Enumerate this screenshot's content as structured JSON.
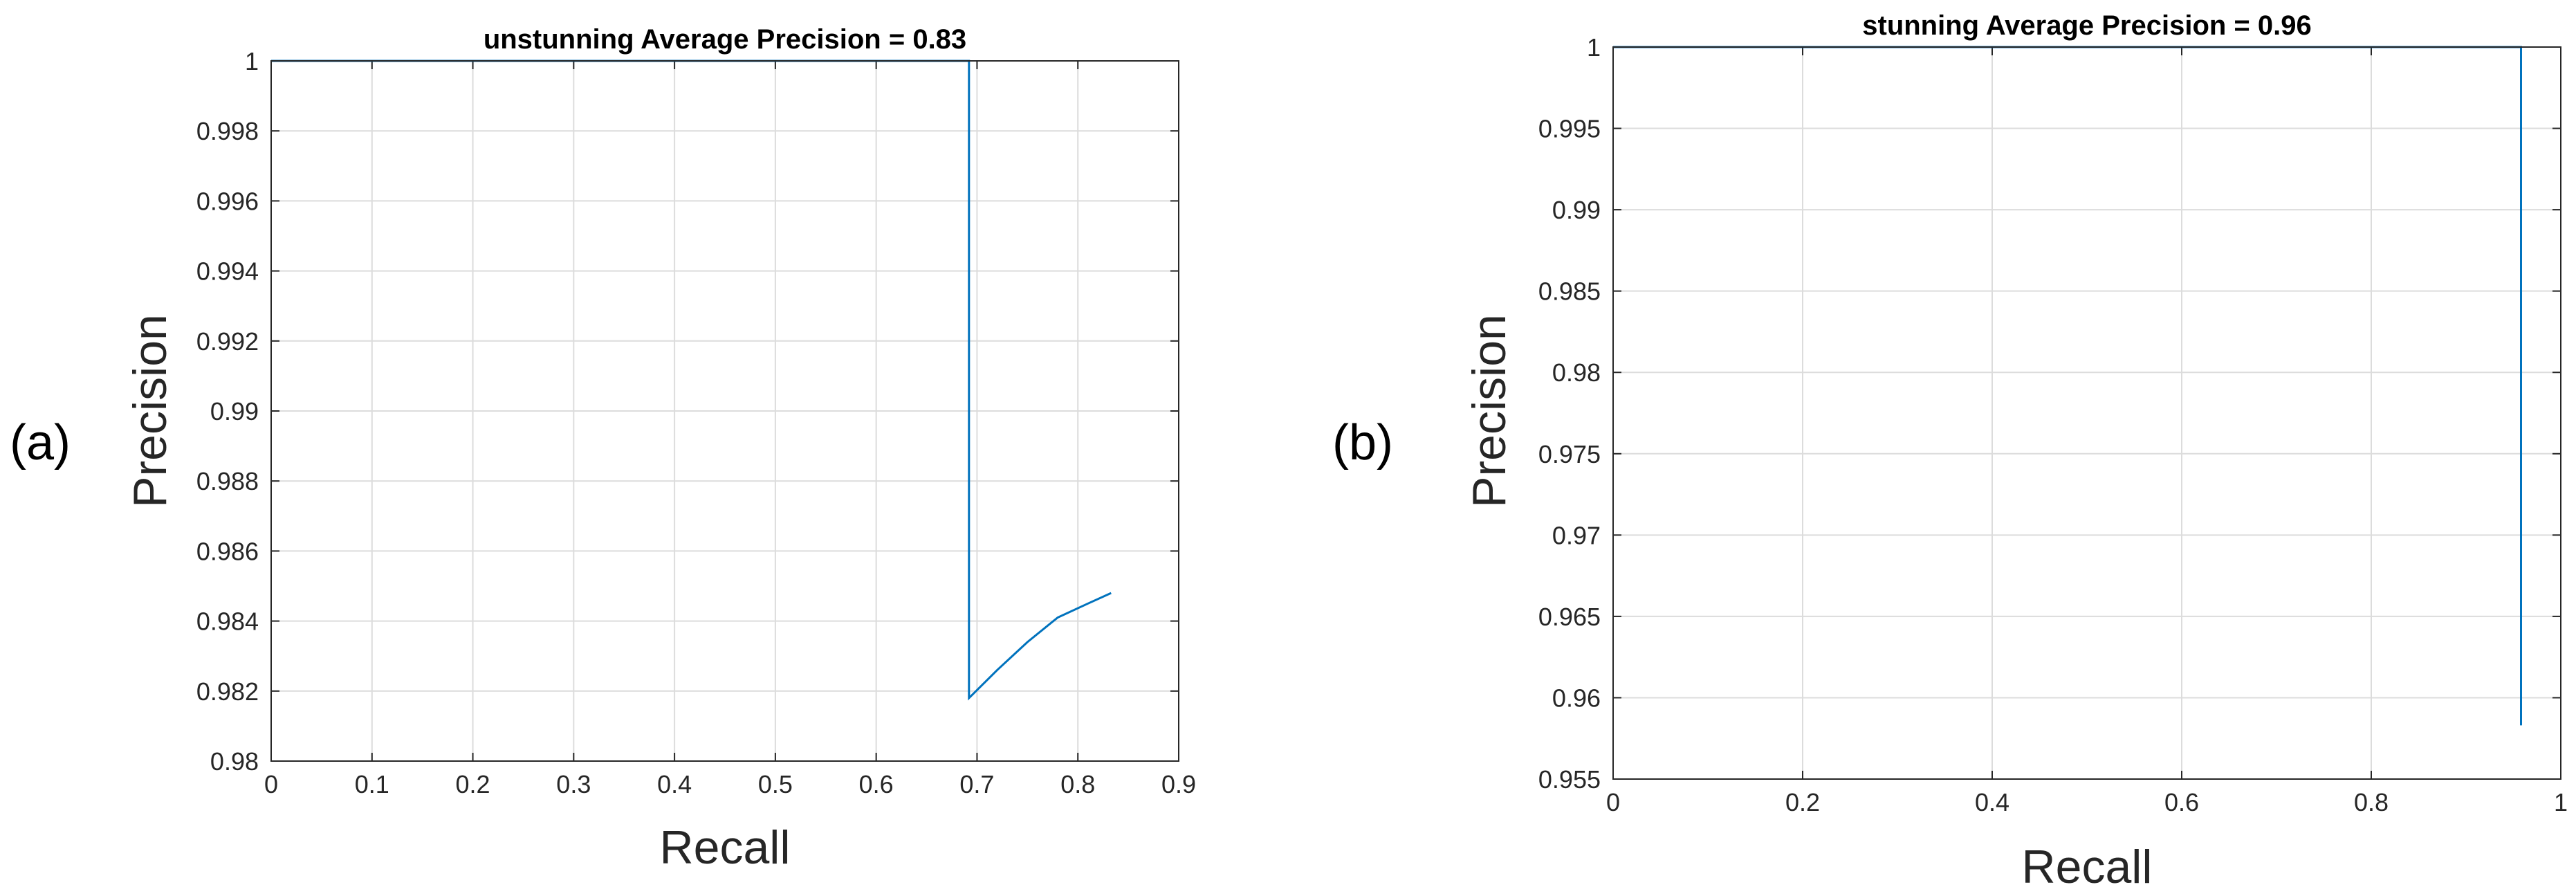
{
  "chart_data": [
    {
      "panel_label": "(a)",
      "type": "line",
      "title": "unstunning Average Precision = 0.83",
      "xlabel": "Recall",
      "ylabel": "Precision",
      "xlim": [
        0,
        0.9
      ],
      "ylim": [
        0.98,
        1
      ],
      "xticks": [
        "0",
        "0.1",
        "0.2",
        "0.3",
        "0.4",
        "0.5",
        "0.6",
        "0.7",
        "0.8",
        "0.9"
      ],
      "yticks": [
        "0.98",
        "0.982",
        "0.984",
        "0.986",
        "0.988",
        "0.99",
        "0.992",
        "0.994",
        "0.996",
        "0.998",
        "1"
      ],
      "grid": true,
      "color": "#0072BD",
      "series": [
        {
          "x": [
            0,
            0.692,
            0.692,
            0.72,
            0.75,
            0.78,
            0.81,
            0.833
          ],
          "y": [
            1,
            1,
            0.9818,
            0.9826,
            0.9834,
            0.9841,
            0.9845,
            0.9848
          ]
        }
      ]
    },
    {
      "panel_label": "(b)",
      "type": "line",
      "title": "stunning Average Precision = 0.96",
      "xlabel": "Recall",
      "ylabel": "Precision",
      "xlim": [
        0,
        1
      ],
      "ylim": [
        0.955,
        1
      ],
      "xticks": [
        "0",
        "0.2",
        "0.4",
        "0.6",
        "0.8",
        "1"
      ],
      "yticks": [
        "0.955",
        "0.96",
        "0.965",
        "0.97",
        "0.975",
        "0.98",
        "0.985",
        "0.99",
        "0.995",
        "1"
      ],
      "grid": true,
      "color": "#0072BD",
      "series": [
        {
          "x": [
            0,
            0.958,
            0.958
          ],
          "y": [
            1,
            1,
            0.9583
          ]
        }
      ]
    }
  ]
}
